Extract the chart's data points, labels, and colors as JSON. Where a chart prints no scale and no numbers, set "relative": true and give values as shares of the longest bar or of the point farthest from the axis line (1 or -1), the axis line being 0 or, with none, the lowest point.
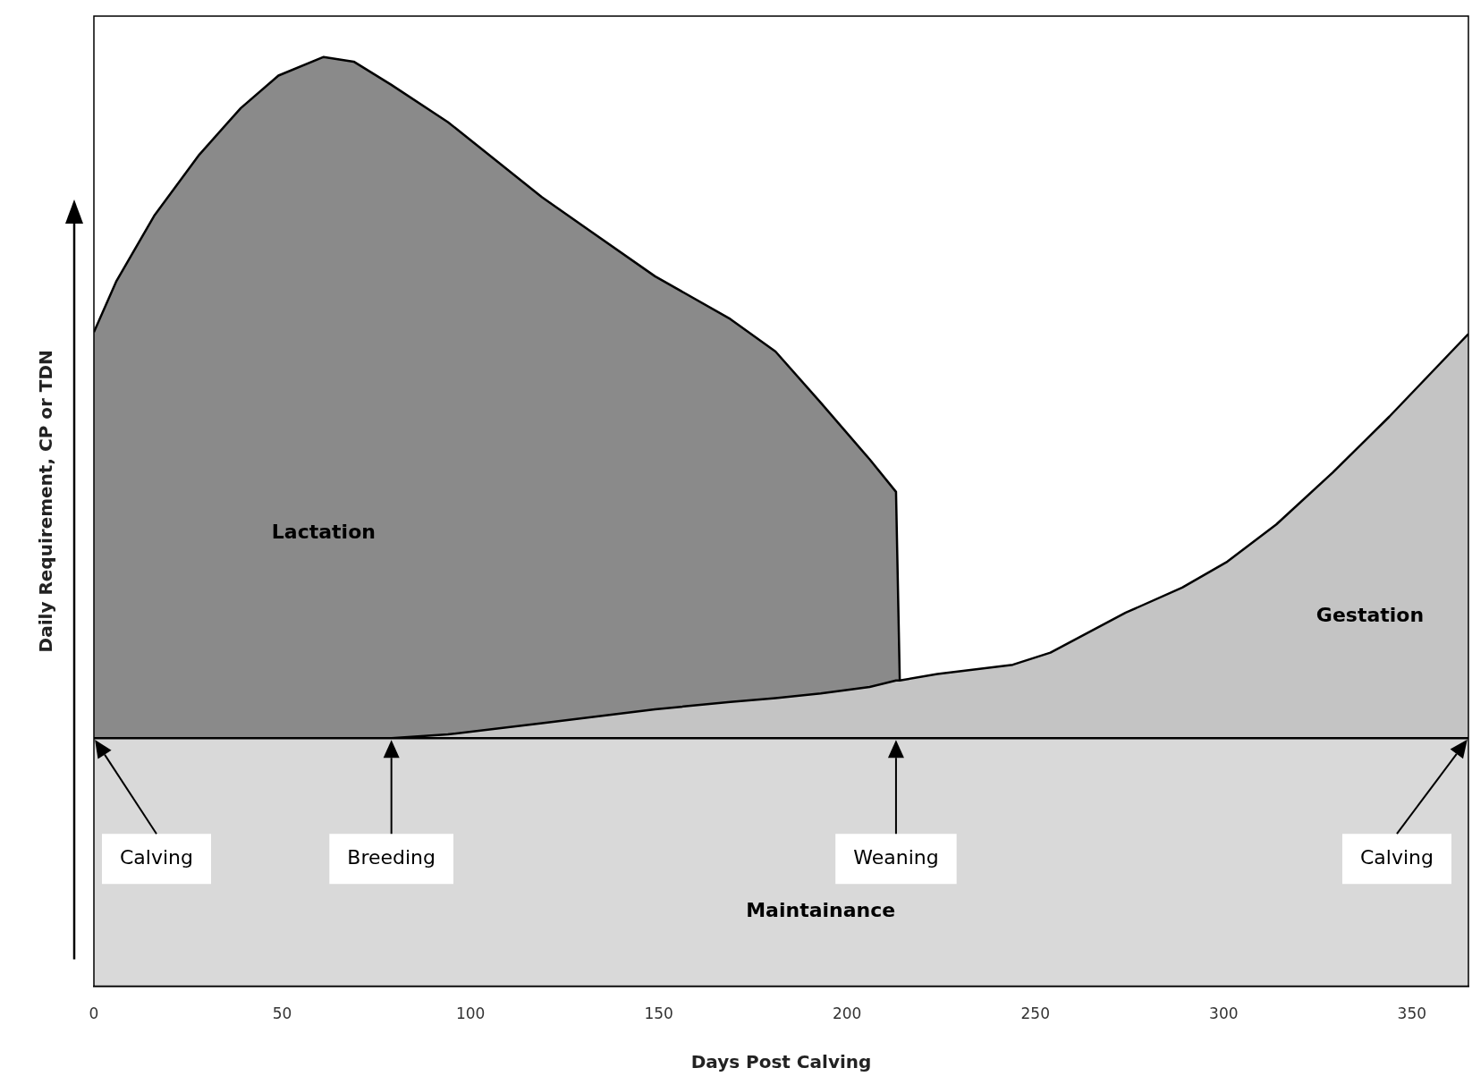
{
  "chart_data": {
    "type": "area",
    "relative": true,
    "xlabel": "Days Post Calving",
    "ylabel": "Daily Requirement, CP or TDN",
    "xlim": [
      0,
      365
    ],
    "xticks": [
      0,
      50,
      100,
      150,
      200,
      250,
      300,
      350
    ],
    "x": [
      0,
      6,
      16,
      28,
      39,
      49,
      61,
      69,
      79,
      94,
      119,
      149,
      169,
      181,
      193,
      206,
      213,
      214,
      224,
      244,
      254,
      274,
      289,
      301,
      314,
      329,
      344,
      365
    ],
    "series": [
      {
        "name": "Maintainance",
        "color": "#d9d9d9",
        "values": [
          0.267,
          0.267,
          0.267,
          0.267,
          0.267,
          0.267,
          0.267,
          0.267,
          0.267,
          0.267,
          0.267,
          0.267,
          0.267,
          0.267,
          0.267,
          0.267,
          0.267,
          0.267,
          0.267,
          0.267,
          0.267,
          0.267,
          0.267,
          0.267,
          0.267,
          0.267,
          0.267,
          0.267
        ]
      },
      {
        "name": "Gestation",
        "color": "#c4c4c4",
        "values": [
          0.267,
          0.267,
          0.267,
          0.267,
          0.267,
          0.267,
          0.267,
          0.267,
          0.267,
          0.271,
          0.283,
          0.298,
          0.306,
          0.31,
          0.315,
          0.322,
          0.329,
          0.329,
          0.336,
          0.346,
          0.359,
          0.402,
          0.429,
          0.457,
          0.497,
          0.553,
          0.613,
          0.702
        ]
      },
      {
        "name": "Lactation",
        "color": "#8a8a8a",
        "values": [
          0.704,
          0.759,
          0.829,
          0.895,
          0.945,
          0.98,
          1.0,
          0.995,
          0.97,
          0.93,
          0.849,
          0.764,
          0.718,
          0.683,
          0.628,
          0.567,
          0.532,
          0.329,
          null,
          null,
          null,
          null,
          null,
          null,
          null,
          null,
          null,
          null
        ]
      }
    ],
    "annotations": [
      {
        "text": "Calving",
        "x": 0
      },
      {
        "text": "Breeding",
        "x": 79
      },
      {
        "text": "Weaning",
        "x": 213
      },
      {
        "text": "Calving",
        "x": 365
      }
    ]
  }
}
